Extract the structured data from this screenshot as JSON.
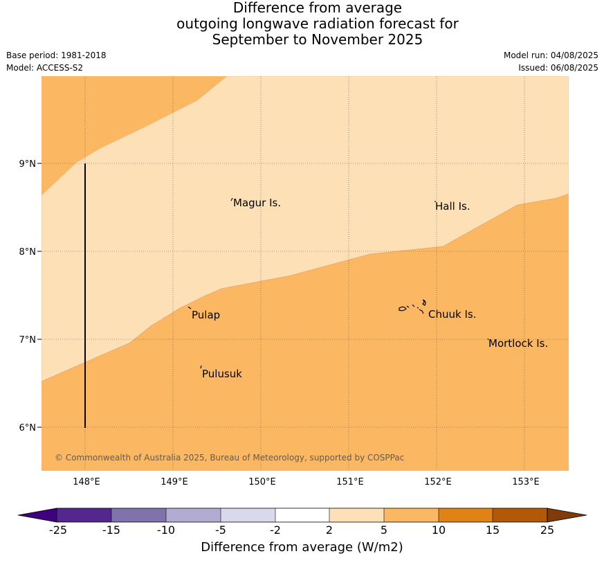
{
  "title": {
    "line1": "Difference from average",
    "line2": "outgoing longwave radiation forecast for",
    "line3": "September to November 2025"
  },
  "meta": {
    "base_period": "Base period: 1981-2018",
    "model": "Model: ACCESS-S2",
    "model_run": "Model run: 04/08/2025",
    "issued": "Issued: 06/08/2025"
  },
  "map": {
    "lat_labels": [
      "9°N",
      "8°N",
      "7°N",
      "6°N"
    ],
    "lon_labels": [
      "148°E",
      "149°E",
      "150°E",
      "151°E",
      "152°E",
      "153°E"
    ],
    "places": [
      {
        "name": "Magur Is."
      },
      {
        "name": "Hall Is."
      },
      {
        "name": "Pulap"
      },
      {
        "name": "Chuuk Is."
      },
      {
        "name": "Mortlock Is."
      },
      {
        "name": "Pulusuk"
      }
    ],
    "copyright": "© Commonwealth of Australia 2025, Bureau of Meteorology, supported by COSPPac",
    "fill_colors": {
      "2_to_5": "#fde0b6",
      "5_to_10": "#fbb761"
    }
  },
  "colorbar": {
    "ticks": [
      "-25",
      "-15",
      "-10",
      "-5",
      "-2",
      "2",
      "5",
      "10",
      "15",
      "25"
    ],
    "colors": [
      "#3f007d",
      "#54278f",
      "#8073ac",
      "#b2abd2",
      "#d8daeb",
      "#ffffff",
      "#fde0b6",
      "#fbb761",
      "#e08214",
      "#b35806",
      "#7f3b08"
    ],
    "label": "Difference from average (W/m2)"
  }
}
